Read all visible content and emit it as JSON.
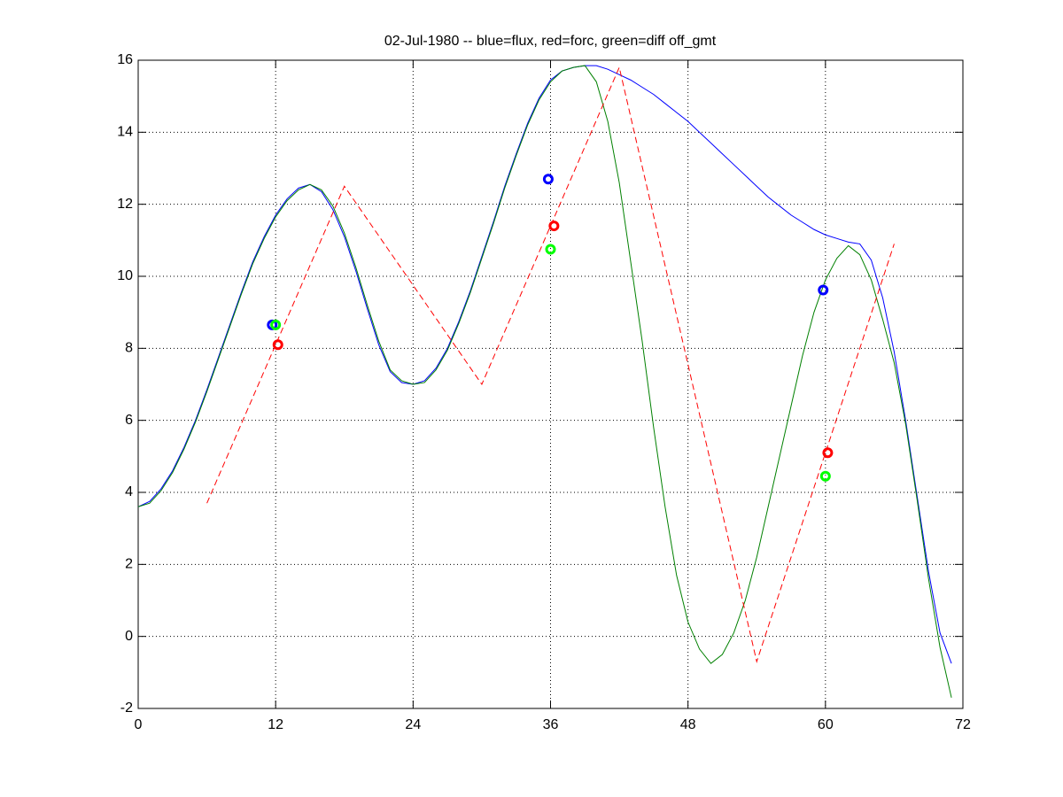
{
  "chart_data": {
    "type": "line",
    "title": "02-Jul-1980 -- blue=flux, red=forc, green=diff off_gmt",
    "xlim": [
      0,
      72
    ],
    "xticks": [
      0,
      12,
      24,
      36,
      48,
      60,
      72
    ],
    "ylim": [
      -2,
      16
    ],
    "yticks": [
      -2,
      0,
      2,
      4,
      6,
      8,
      10,
      12,
      14,
      16
    ],
    "grid": true,
    "series": [
      {
        "color": "#0000ff",
        "style": "solid",
        "x": [
          0,
          1,
          2,
          3,
          4,
          5,
          6,
          7,
          8,
          9,
          10,
          11,
          12,
          13,
          14,
          15,
          16,
          17,
          18,
          19,
          20,
          21,
          22,
          23,
          24,
          25,
          26,
          27,
          28,
          29,
          30,
          31,
          32,
          33,
          34,
          35,
          36,
          37,
          38,
          39,
          40,
          41,
          42,
          43,
          44,
          45,
          46,
          47,
          48,
          49,
          50,
          51,
          52,
          53,
          54,
          55,
          56,
          57,
          58,
          59,
          60,
          61,
          62,
          63,
          64,
          65,
          66,
          67,
          68,
          69,
          70,
          71
        ],
        "values": [
          3.6,
          3.75,
          4.1,
          4.6,
          5.25,
          6.0,
          6.85,
          7.75,
          8.65,
          9.55,
          10.4,
          11.1,
          11.7,
          12.15,
          12.45,
          12.55,
          12.35,
          11.85,
          11.1,
          10.15,
          9.1,
          8.1,
          7.35,
          7.05,
          7.0,
          7.1,
          7.45,
          8.0,
          8.75,
          9.6,
          10.55,
          11.5,
          12.5,
          13.4,
          14.25,
          14.95,
          15.45,
          15.7,
          15.8,
          15.85,
          15.85,
          15.75,
          15.6,
          15.45,
          15.25,
          15.05,
          14.8,
          14.55,
          14.3,
          14.0,
          13.7,
          13.4,
          13.1,
          12.8,
          12.5,
          12.2,
          11.95,
          11.7,
          11.5,
          11.3,
          11.15,
          11.05,
          10.95,
          10.9,
          10.45,
          9.4,
          7.9,
          6.0,
          3.9,
          1.8,
          0.1,
          -0.75
        ]
      },
      {
        "color": "#008000",
        "style": "solid",
        "x": [
          0,
          1,
          2,
          3,
          4,
          5,
          6,
          7,
          8,
          9,
          10,
          11,
          12,
          13,
          14,
          15,
          16,
          17,
          18,
          19,
          20,
          21,
          22,
          23,
          24,
          25,
          26,
          27,
          28,
          29,
          30,
          31,
          32,
          33,
          34,
          35,
          36,
          37,
          38,
          39,
          40,
          41,
          42,
          43,
          44,
          45,
          46,
          47,
          48,
          49,
          50,
          51,
          52,
          53,
          54,
          55,
          56,
          57,
          58,
          59,
          60,
          61,
          62,
          63,
          64,
          65,
          66,
          67,
          68,
          69,
          70,
          71
        ],
        "values": [
          3.6,
          3.7,
          4.05,
          4.55,
          5.2,
          5.95,
          6.8,
          7.7,
          8.6,
          9.5,
          10.35,
          11.05,
          11.65,
          12.1,
          12.4,
          12.55,
          12.4,
          11.95,
          11.2,
          10.25,
          9.2,
          8.2,
          7.4,
          7.1,
          7.0,
          7.05,
          7.4,
          7.95,
          8.7,
          9.55,
          10.5,
          11.45,
          12.45,
          13.35,
          14.2,
          14.9,
          15.4,
          15.7,
          15.8,
          15.85,
          15.4,
          14.3,
          12.6,
          10.4,
          8.2,
          5.8,
          3.6,
          1.7,
          0.4,
          -0.35,
          -0.75,
          -0.5,
          0.1,
          1.0,
          2.2,
          3.6,
          5.0,
          6.4,
          7.8,
          9.0,
          9.9,
          10.5,
          10.85,
          10.6,
          9.9,
          8.8,
          7.6,
          5.9,
          3.8,
          1.6,
          -0.3,
          -1.7
        ]
      },
      {
        "color": "#ff0000",
        "style": "dashed",
        "x": [
          6,
          18,
          30,
          42,
          54,
          66
        ],
        "values": [
          3.7,
          12.5,
          7.0,
          15.8,
          -0.7,
          10.9
        ]
      },
      {
        "color": "#0000ff",
        "style": "marker",
        "x": [
          11.7,
          35.8,
          59.8
        ],
        "values": [
          8.65,
          12.7,
          9.62
        ]
      },
      {
        "color": "#ff0000",
        "style": "marker",
        "x": [
          12.2,
          36.3,
          60.2
        ],
        "values": [
          8.1,
          11.4,
          5.1
        ]
      },
      {
        "color": "#00ff00",
        "style": "marker",
        "x": [
          12.0,
          36.0,
          60.0
        ],
        "values": [
          8.65,
          10.75,
          4.45
        ]
      }
    ]
  }
}
